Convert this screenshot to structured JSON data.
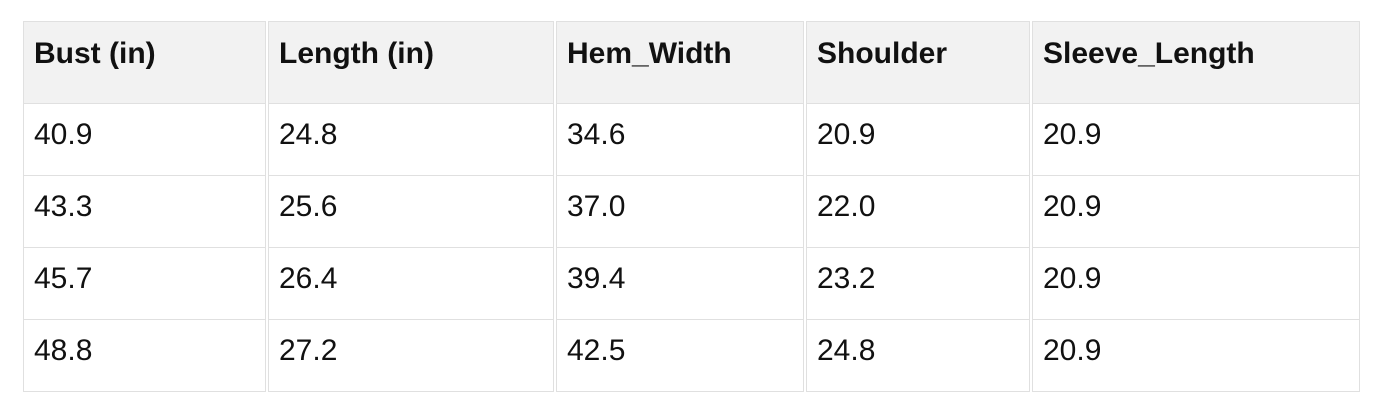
{
  "table": {
    "columns": [
      "Bust (in)",
      "Length (in)",
      "Hem_Width",
      "Shoulder",
      "Sleeve_Length"
    ],
    "rows": [
      [
        "40.9",
        "24.8",
        "34.6",
        "20.9",
        "20.9"
      ],
      [
        "43.3",
        "25.6",
        "37.0",
        "22.0",
        "20.9"
      ],
      [
        "45.7",
        "26.4",
        "39.4",
        "23.2",
        "20.9"
      ],
      [
        "48.8",
        "27.2",
        "42.5",
        "24.8",
        "20.9"
      ]
    ]
  },
  "colors": {
    "page_bg": "#ffffff",
    "header_bg": "#f2f2f2",
    "border": "#e0e0e0",
    "text": "#111111"
  }
}
